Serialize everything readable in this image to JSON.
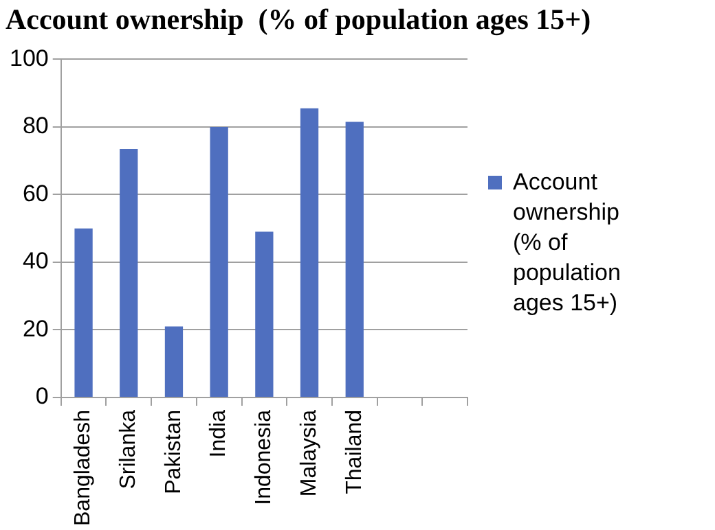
{
  "chart_data": {
    "type": "bar",
    "title": "Account ownership  (% of population ages 15+)",
    "categories": [
      "Bangladesh",
      "Srilanka",
      "Pakistan",
      "India",
      "Indonesia",
      "Malaysia",
      "Thailand",
      null,
      null
    ],
    "series": [
      {
        "name": "Account ownership (% of population ages 15+)",
        "color": "#4f6fbf",
        "values": [
          50,
          73.5,
          21,
          80,
          49,
          85.5,
          81.5,
          null,
          null
        ]
      }
    ],
    "ylim": [
      0,
      100
    ],
    "yticks": [
      0,
      20,
      40,
      60,
      80,
      100
    ],
    "grid": "y",
    "legend": "right"
  }
}
